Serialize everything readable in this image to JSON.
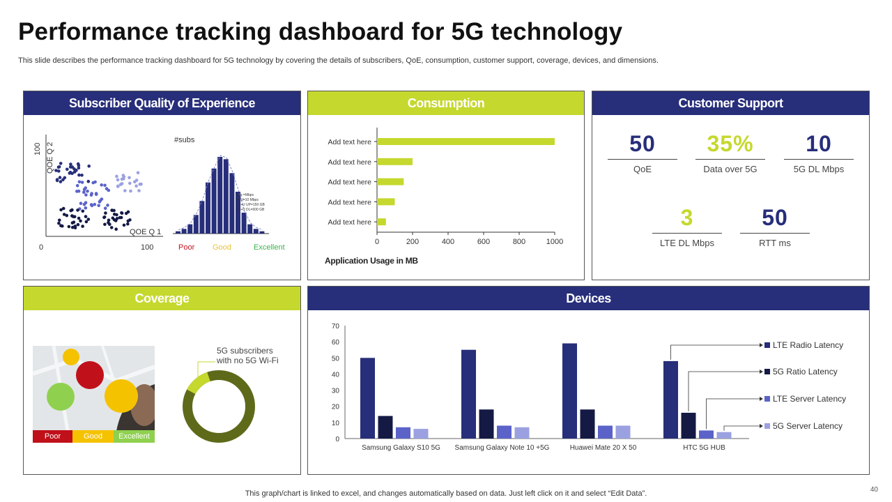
{
  "title": "Performance tracking dashboard for 5G technology",
  "subtitle": "This slide describes the performance tracking dashboard for 5G technology by covering the details of subscribers, QoE, consumption, customer support, coverage, devices, and dimensions.",
  "footer": "This graph/chart is linked to excel,  and changes automatically based on data. Just left click on it and select “Edit Data”.",
  "page_number": "40",
  "colors": {
    "navy": "#272e7a",
    "lime": "#c5d82e",
    "dark_navy": "#141a44",
    "mid_blue": "#5b63c9",
    "light_blue": "#9ba1e0"
  },
  "sqe": {
    "header": "Subscriber Quality of Experience",
    "y_top": "100",
    "y_label": "QOE Q 2",
    "x_start": "0",
    "x_end": "100",
    "x_label": "QOE Q 1",
    "hist_title": "#subs",
    "hist_note": [
      "Avg =Mbps",
      "Med=10 Mbps",
      "X2+U UP=150 GB",
      "X2+U DL=600 GB"
    ],
    "quality": {
      "poor": "Poor",
      "good": "Good",
      "excellent": "Excellent"
    },
    "hist_values": [
      1,
      2,
      4,
      8,
      14,
      22,
      28,
      33,
      32,
      26,
      18,
      9,
      4,
      2,
      1
    ]
  },
  "consumption": {
    "header": "Consumption",
    "xlabel": "Application Usage in MB",
    "chart_data": {
      "type": "bar",
      "orientation": "horizontal",
      "categories": [
        "Add text here",
        "Add text here",
        "Add text here",
        "Add text here",
        "Add text here"
      ],
      "values": [
        1000,
        200,
        150,
        100,
        50
      ],
      "xlim": [
        0,
        1000
      ],
      "ticks": [
        "0",
        "200",
        "400",
        "600",
        "800",
        "1000"
      ],
      "xlabel": "Application Usage in MB"
    }
  },
  "support": {
    "header": "Customer Support",
    "metrics": [
      {
        "value": "50",
        "label": "QoE",
        "color": "#272e7a"
      },
      {
        "value": "35%",
        "label": "Data over 5G",
        "color": "#c5d82e"
      },
      {
        "value": "10",
        "label": "5G DL Mbps",
        "color": "#272e7a"
      },
      {
        "value": "3",
        "label": "LTE DL Mbps",
        "color": "#c5d82e"
      },
      {
        "value": "50",
        "label": "RTT  ms",
        "color": "#272e7a"
      }
    ]
  },
  "coverage": {
    "header": "Coverage",
    "donut_label": "5G subscribers with no 5G Wi-Fi",
    "donut_lines": [
      "5G subscribers",
      "with no 5G Wi-Fi"
    ],
    "donut_fraction": 0.12,
    "legend": {
      "poor": "Poor",
      "good": "Good",
      "excellent": "Excellent"
    }
  },
  "devices": {
    "header": "Devices",
    "chart_data": {
      "type": "bar",
      "categories": [
        "Samsung Galaxy S10 5G",
        "Samsung Galaxy Note 10 +5G",
        "Huawei Mate 20 X 50",
        "HTC 5G HUB"
      ],
      "series": [
        {
          "name": "LTE Radio Latency",
          "values": [
            50,
            55,
            59,
            48
          ],
          "color": "#272e7a"
        },
        {
          "name": "5G Ratio Latency",
          "values": [
            14,
            18,
            18,
            16
          ],
          "color": "#141a44"
        },
        {
          "name": "LTE Server Latency",
          "values": [
            7,
            8,
            8,
            5
          ],
          "color": "#5b63c9"
        },
        {
          "name": "5G Server Latency",
          "values": [
            6,
            7,
            8,
            4
          ],
          "color": "#9ba1e0"
        }
      ],
      "ylim": [
        0,
        70
      ],
      "yticks": [
        "0",
        "10",
        "20",
        "30",
        "40",
        "50",
        "60",
        "70"
      ],
      "legend_position": "right"
    }
  }
}
